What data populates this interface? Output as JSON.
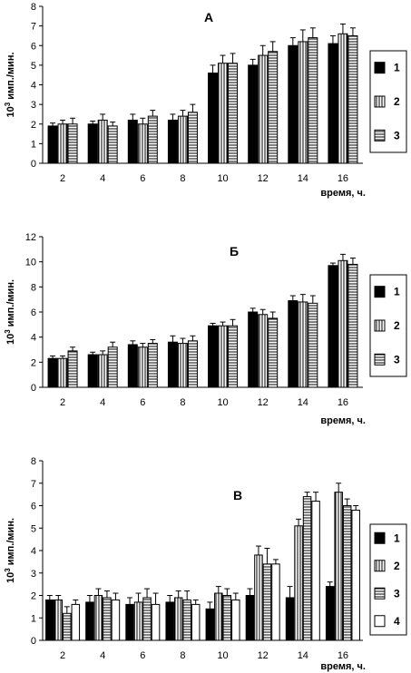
{
  "chart_data": [
    {
      "type": "bar",
      "title": "А",
      "ylabel_base": "10",
      "ylabel_exp": "3",
      "ylabel_rest": " имп./мин.",
      "xlabel": "время, ч.",
      "categories": [
        "2",
        "4",
        "6",
        "8",
        "10",
        "12",
        "14",
        "16"
      ],
      "yticks": [
        "0",
        "1",
        "2",
        "3",
        "4",
        "5",
        "6",
        "7",
        "8"
      ],
      "ylim": [
        0,
        8
      ],
      "legend_position": "right",
      "series": [
        {
          "name": "1",
          "pattern": "solid",
          "values": [
            1.9,
            2.0,
            2.2,
            2.2,
            4.6,
            5.0,
            6.0,
            6.1
          ],
          "errors": [
            0.15,
            0.15,
            0.3,
            0.3,
            0.4,
            0.3,
            0.4,
            0.4
          ]
        },
        {
          "name": "2",
          "pattern": "vertical",
          "values": [
            2.0,
            2.2,
            2.0,
            2.4,
            5.1,
            5.5,
            6.2,
            6.6
          ],
          "errors": [
            0.2,
            0.3,
            0.3,
            0.3,
            0.4,
            0.5,
            0.6,
            0.5
          ]
        },
        {
          "name": "3",
          "pattern": "horizontal",
          "values": [
            2.0,
            1.9,
            2.4,
            2.6,
            5.1,
            5.7,
            6.4,
            6.5
          ],
          "errors": [
            0.3,
            0.2,
            0.3,
            0.4,
            0.5,
            0.5,
            0.5,
            0.4
          ]
        }
      ]
    },
    {
      "type": "bar",
      "title": "Б",
      "ylabel_base": "10",
      "ylabel_exp": "3",
      "ylabel_rest": " имп./мин.",
      "xlabel": "время, ч.",
      "categories": [
        "2",
        "4",
        "6",
        "8",
        "10",
        "12",
        "14",
        "16"
      ],
      "yticks": [
        "0",
        "2",
        "4",
        "6",
        "8",
        "10",
        "12"
      ],
      "ylim": [
        0,
        12
      ],
      "legend_position": "right",
      "series": [
        {
          "name": "1",
          "pattern": "solid",
          "values": [
            2.3,
            2.6,
            3.4,
            3.6,
            4.9,
            6.0,
            6.9,
            9.7
          ],
          "errors": [
            0.2,
            0.2,
            0.3,
            0.5,
            0.2,
            0.3,
            0.4,
            0.2
          ]
        },
        {
          "name": "2",
          "pattern": "vertical",
          "values": [
            2.3,
            2.6,
            3.2,
            3.5,
            4.9,
            5.8,
            6.8,
            10.1
          ],
          "errors": [
            0.2,
            0.3,
            0.3,
            0.4,
            0.3,
            0.4,
            0.6,
            0.5
          ]
        },
        {
          "name": "3",
          "pattern": "horizontal",
          "values": [
            2.9,
            3.2,
            3.5,
            3.7,
            4.9,
            5.5,
            6.7,
            9.8
          ],
          "errors": [
            0.3,
            0.4,
            0.3,
            0.4,
            0.5,
            0.5,
            0.6,
            0.5
          ]
        }
      ]
    },
    {
      "type": "bar",
      "title": "В",
      "ylabel_base": "10",
      "ylabel_exp": "3",
      "ylabel_rest": " имп./мин.",
      "xlabel": "время, ч.",
      "categories": [
        "2",
        "4",
        "6",
        "8",
        "10",
        "12",
        "14",
        "16"
      ],
      "yticks": [
        "0",
        "1",
        "2",
        "3",
        "4",
        "5",
        "6",
        "7",
        "8"
      ],
      "ylim": [
        0,
        8
      ],
      "legend_position": "right",
      "series": [
        {
          "name": "1",
          "pattern": "solid",
          "values": [
            1.8,
            1.7,
            1.6,
            1.7,
            1.4,
            2.0,
            1.9,
            2.4
          ],
          "errors": [
            0.2,
            0.3,
            0.3,
            0.3,
            0.3,
            0.3,
            0.5,
            0.2
          ]
        },
        {
          "name": "2",
          "pattern": "vertical",
          "values": [
            1.8,
            2.0,
            1.7,
            1.9,
            2.1,
            3.8,
            5.1,
            6.6
          ],
          "errors": [
            0.2,
            0.3,
            0.4,
            0.3,
            0.3,
            0.4,
            0.3,
            0.4
          ]
        },
        {
          "name": "3",
          "pattern": "horizontal",
          "values": [
            1.2,
            1.9,
            1.9,
            1.8,
            2.0,
            3.4,
            6.4,
            6.0
          ],
          "errors": [
            0.3,
            0.3,
            0.4,
            0.4,
            0.3,
            0.7,
            0.2,
            0.3
          ]
        },
        {
          "name": "4",
          "pattern": "empty",
          "values": [
            1.6,
            1.8,
            1.6,
            1.6,
            1.8,
            3.4,
            6.2,
            5.8
          ],
          "errors": [
            0.2,
            0.3,
            0.5,
            0.2,
            0.3,
            0.2,
            0.4,
            0.2
          ]
        }
      ]
    }
  ]
}
